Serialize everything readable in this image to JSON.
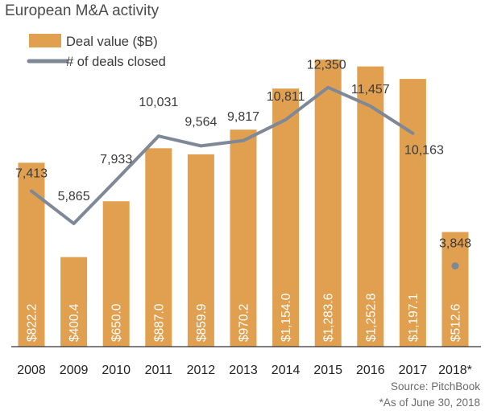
{
  "title": "European M&A activity",
  "colors": {
    "bar": "#E0A050",
    "line": "#7E8896",
    "axis": "#333333"
  },
  "legend": {
    "bar_label": "Deal value ($B)",
    "line_label": "# of deals closed"
  },
  "footnotes": {
    "source": "Source: PitchBook",
    "note": "*As of June 30, 2018"
  },
  "chart_data": {
    "type": "bar",
    "title": "European M&A activity",
    "categories": [
      "2008",
      "2009",
      "2010",
      "2011",
      "2012",
      "2013",
      "2014",
      "2015",
      "2016",
      "2017",
      "2018*"
    ],
    "series": [
      {
        "name": "Deal value ($B)",
        "type": "bar",
        "values": [
          822.2,
          400.4,
          650.0,
          887.0,
          859.9,
          970.2,
          1154.0,
          1283.6,
          1252.8,
          1197.1,
          512.6
        ],
        "labels": [
          "$822.2",
          "$400.4",
          "$650.0",
          "$887.0",
          "$859.9",
          "$970.2",
          "$1,154.0",
          "$1,283.6",
          "$1,252.8",
          "$1,197.1",
          "$512.6"
        ]
      },
      {
        "name": "# of deals closed",
        "type": "line",
        "values": [
          7413,
          5865,
          7933,
          10031,
          9564,
          9817,
          10811,
          12350,
          11457,
          10163,
          3848
        ],
        "labels": [
          "7,413",
          "5,865",
          "7,933",
          "10,031",
          "9,564",
          "9,817",
          "10,811",
          "12,350",
          "11,457",
          "10,163",
          "3,848"
        ]
      }
    ],
    "notes": "2018 deal count shown as a separate point (partial year)",
    "grid": false
  }
}
